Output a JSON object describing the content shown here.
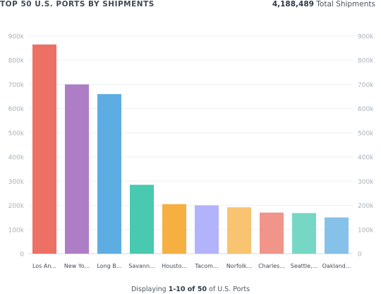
{
  "header": {
    "title": "TOP 50 U.S. PORTS BY SHIPMENTS",
    "total_value": "4,188,489",
    "total_label": "Total Shipments"
  },
  "footer": {
    "prefix": "Displaying",
    "range": "1-10 of 50",
    "suffix": "of U.S. Ports"
  },
  "chart_data": {
    "type": "bar",
    "title": "TOP 50 U.S. PORTS BY SHIPMENTS",
    "xlabel": "",
    "ylabel": "",
    "ylim": [
      0,
      900000
    ],
    "yticks": [
      0,
      100000,
      200000,
      300000,
      400000,
      500000,
      600000,
      700000,
      800000,
      900000
    ],
    "ytick_labels": [
      "0",
      "100k",
      "200k",
      "300k",
      "400k",
      "500k",
      "600k",
      "700k",
      "800k",
      "900k"
    ],
    "grid": true,
    "axes": "left and right",
    "categories": [
      "Los An...",
      "New Yo...",
      "Long B...",
      "Savann...",
      "Housto...",
      "Tacom...",
      "Norfolk...",
      "Charles...",
      "Seattle,...",
      "Oakland..."
    ],
    "values": [
      865000,
      700000,
      660000,
      285000,
      205000,
      200000,
      192000,
      170000,
      168000,
      150000
    ],
    "colors": [
      "#ec7063",
      "#ad7ec6",
      "#5dade2",
      "#48c9b0",
      "#f5b041",
      "#b3b3fc",
      "#f8c471",
      "#f1948a",
      "#76d7c4",
      "#85c1e9"
    ]
  }
}
